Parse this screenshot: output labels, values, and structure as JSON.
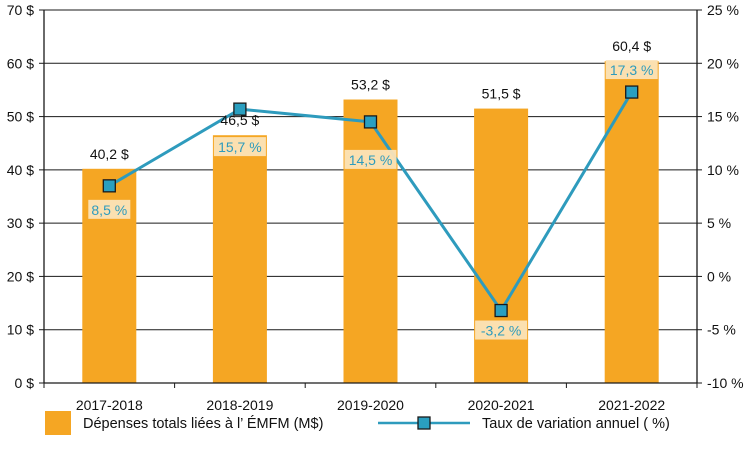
{
  "chart_data": {
    "type": "bar",
    "categories": [
      "2017-2018",
      "2018-2019",
      "2019-2020",
      "2020-2021",
      "2021-2022"
    ],
    "series": [
      {
        "name": "Dépenses totals liées à l’ ÉMFM (M$)",
        "type": "bar",
        "axis": "left",
        "values": [
          40.2,
          46.5,
          53.2,
          51.5,
          60.4
        ],
        "labels": [
          "40,2 $",
          "46,5 $",
          "53,2 $",
          "51,5 $",
          "60,4 $"
        ],
        "color": "#f5a623"
      },
      {
        "name": "Taux de variation annuel ( %)",
        "type": "line",
        "axis": "right",
        "values": [
          8.5,
          15.7,
          14.5,
          -3.2,
          17.3
        ],
        "labels": [
          "8,5 %",
          "15,7 %",
          "14,5 %",
          "-3,2 %",
          "17,3 %"
        ],
        "color": "#2e9bbd",
        "marker_color": "#2a9fc0"
      }
    ],
    "y_left": {
      "lim": [
        0,
        70
      ],
      "ticks": [
        0,
        10,
        20,
        30,
        40,
        50,
        60,
        70
      ],
      "tick_labels": [
        "0 $",
        "10 $",
        "20 $",
        "30 $",
        "40 $",
        "50 $",
        "60 $",
        "70 $"
      ]
    },
    "y_right": {
      "lim": [
        -10,
        25
      ],
      "ticks": [
        -10,
        -5,
        0,
        5,
        10,
        15,
        20,
        25
      ],
      "tick_labels": [
        "-10 %",
        "-5 %",
        "0 %",
        "5 %",
        "10 %",
        "15 %",
        "20 %",
        "25 %"
      ]
    },
    "grid": true,
    "legend_position": "bottom",
    "title": "",
    "xlabel": "",
    "ylabel": ""
  }
}
